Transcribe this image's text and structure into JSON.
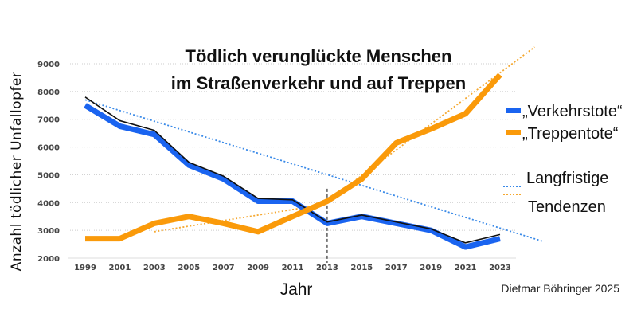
{
  "chart_data": {
    "type": "line",
    "title_line1": "Tödlich verunglückte Menschen",
    "title_line2": "im Straßenverkehr und auf Treppen",
    "xlabel": "Jahr",
    "ylabel": "Anzahl tödlicher Unfallopfer",
    "credit": "Dietmar Böhringer 2025",
    "x": [
      1999,
      2001,
      2003,
      2005,
      2007,
      2009,
      2011,
      2013,
      2015,
      2017,
      2019,
      2021,
      2023
    ],
    "x_ticks": [
      "1999",
      "2001",
      "2003",
      "2005",
      "2007",
      "2009",
      "2011",
      "2013",
      "2015",
      "2017",
      "2019",
      "2021",
      "2023"
    ],
    "y_ticks": [
      "2000",
      "3000",
      "4000",
      "5000",
      "6000",
      "7000",
      "8000",
      "9000"
    ],
    "ylim": [
      2000,
      9000
    ],
    "grid": "horizontal dotted",
    "legend_placement": "right",
    "series": [
      {
        "name": "„Verkehrstote“",
        "color": "#1a64f0",
        "values": [
          7500,
          6750,
          6450,
          5350,
          4850,
          4050,
          4050,
          3250,
          3500,
          3250,
          3000,
          2400,
          2700
        ]
      },
      {
        "name": "„Treppentote“",
        "color": "#fa9a0a",
        "values": [
          2700,
          2700,
          3250,
          3500,
          3250,
          2950,
          3500,
          4050,
          4850,
          6150,
          6650,
          7200,
          8600
        ]
      },
      {
        "color": "#111111",
        "values": [
          7800,
          6950,
          6600,
          5450,
          4950,
          4150,
          4100,
          3300,
          3550,
          3300,
          3050,
          2550,
          2850
        ]
      }
    ],
    "trend_label_line1": "Langfristige",
    "trend_label_line2": "Tendenzen",
    "trends": [
      {
        "color": "#3a8ae8",
        "points": [
          [
            1999,
            7700
          ],
          [
            2025.5,
            2600
          ]
        ]
      },
      {
        "color": "#f5a830",
        "points": [
          [
            2003,
            2950
          ],
          [
            2012,
            3850
          ]
        ]
      },
      {
        "color": "#f5a830",
        "points": [
          [
            2013,
            4050
          ],
          [
            2025,
            9600
          ]
        ]
      }
    ],
    "marker_year": 2013,
    "marker_range": [
      2000,
      4500
    ]
  }
}
